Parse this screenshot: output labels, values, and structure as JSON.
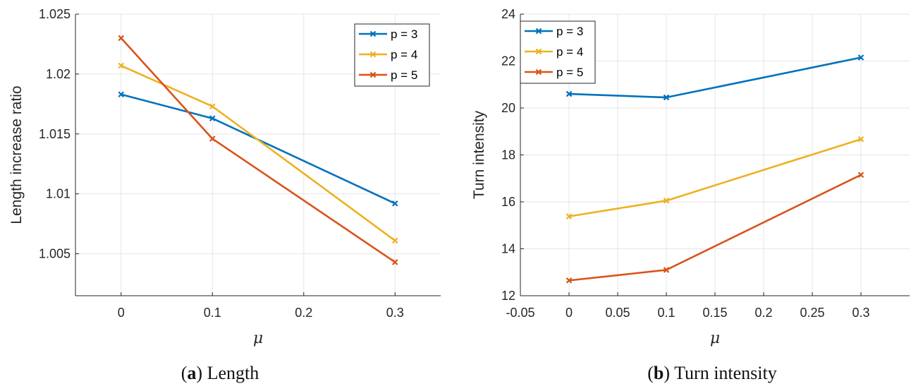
{
  "colors": {
    "series": [
      "#0072bd",
      "#edb120",
      "#d95319"
    ],
    "grid": "#e6e6e6",
    "axis": "#262626"
  },
  "chart_data": [
    {
      "type": "line",
      "title": "",
      "xlabel": "μ",
      "ylabel": "Length increase ratio",
      "xlim": [
        -0.05,
        0.35
      ],
      "ylim": [
        1.0015,
        1.025
      ],
      "x_ticks": [
        0,
        0.1,
        0.2,
        0.3
      ],
      "x_tick_labels": [
        "0",
        "0.1",
        "0.2",
        "0.3"
      ],
      "y_ticks": [
        1.005,
        1.01,
        1.015,
        1.02,
        1.025
      ],
      "y_tick_labels": [
        "1.005",
        "1.01",
        "1.015",
        "1.02",
        "1.025"
      ],
      "grid": true,
      "legend_position": "top-right",
      "x": [
        0,
        0.1,
        0.3
      ],
      "series": [
        {
          "name": "p = 3",
          "values": [
            1.0183,
            1.0163,
            1.0092
          ]
        },
        {
          "name": "p = 4",
          "values": [
            1.0207,
            1.0173,
            1.0061
          ]
        },
        {
          "name": "p = 5",
          "values": [
            1.023,
            1.0146,
            1.0043
          ]
        }
      ],
      "caption": {
        "label": "(a)",
        "bold": "a",
        "text": "Length"
      }
    },
    {
      "type": "line",
      "title": "",
      "xlabel": "μ",
      "ylabel": "Turn intensity",
      "xlim": [
        -0.05,
        0.35
      ],
      "ylim": [
        12,
        24
      ],
      "x_ticks": [
        -0.05,
        0,
        0.05,
        0.1,
        0.15,
        0.2,
        0.25,
        0.3
      ],
      "x_tick_labels": [
        "-0.05",
        "0",
        "0.05",
        "0.1",
        "0.15",
        "0.2",
        "0.25",
        "0.3"
      ],
      "y_ticks": [
        12,
        14,
        16,
        18,
        20,
        22,
        24
      ],
      "y_tick_labels": [
        "12",
        "14",
        "16",
        "18",
        "20",
        "22",
        "24"
      ],
      "grid": true,
      "legend_position": "top-left",
      "x": [
        0,
        0.1,
        0.3
      ],
      "series": [
        {
          "name": "p = 3",
          "values": [
            20.6,
            20.45,
            22.15
          ]
        },
        {
          "name": "p = 4",
          "values": [
            15.38,
            16.05,
            18.67
          ]
        },
        {
          "name": "p = 5",
          "values": [
            12.65,
            13.1,
            17.15
          ]
        }
      ],
      "caption": {
        "label": "(b)",
        "bold": "b",
        "text": "Turn intensity"
      }
    }
  ]
}
